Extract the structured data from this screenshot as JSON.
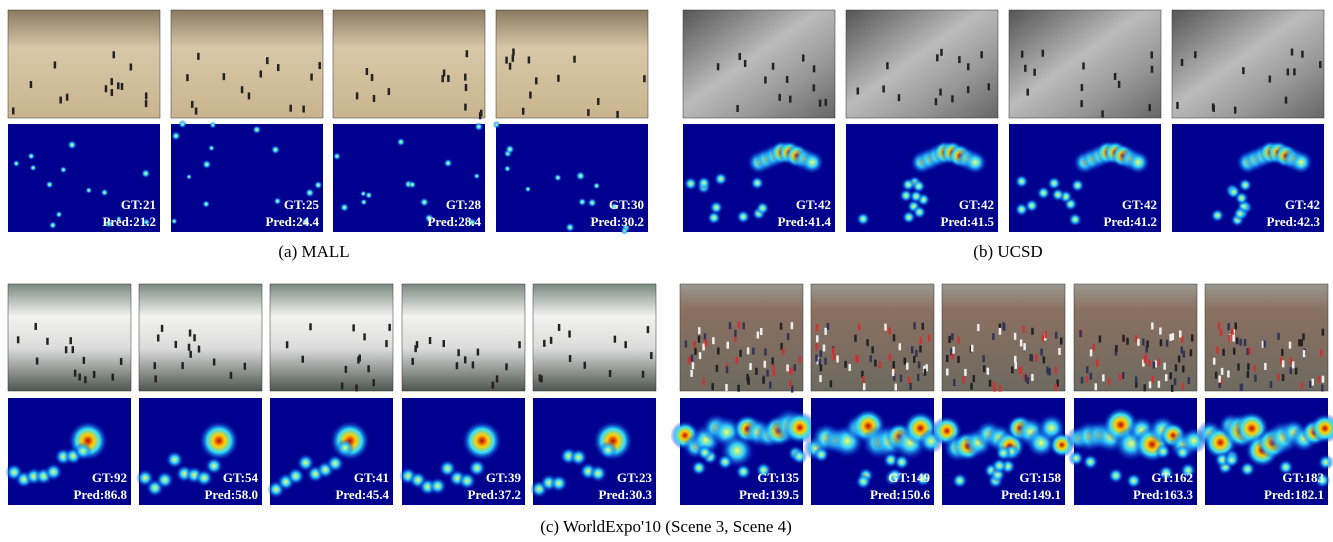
{
  "figure": {
    "panels": [
      {
        "caption": "(a) MALL",
        "frames": [
          {
            "gt": "GT:21",
            "pred": "Pred:21.2"
          },
          {
            "gt": "GT:25",
            "pred": "Pred:24.4"
          },
          {
            "gt": "GT:28",
            "pred": "Pred:28.4"
          },
          {
            "gt": "GT:30",
            "pred": "Pred:30.2"
          }
        ]
      },
      {
        "caption": "(b) UCSD",
        "frames": [
          {
            "gt": "GT:42",
            "pred": "Pred:41.4"
          },
          {
            "gt": "GT:42",
            "pred": "Pred:41.5"
          },
          {
            "gt": "GT:42",
            "pred": "Pred:41.2"
          },
          {
            "gt": "GT:42",
            "pred": "Pred:42.3"
          }
        ]
      },
      {
        "frames": [
          {
            "gt": "GT:92",
            "pred": "Pred:86.8"
          },
          {
            "gt": "GT:54",
            "pred": "Pred:58.0"
          },
          {
            "gt": "GT:41",
            "pred": "Pred:45.4"
          },
          {
            "gt": "GT:39",
            "pred": "Pred:37.2"
          },
          {
            "gt": "GT:23",
            "pred": "Pred:30.3"
          }
        ]
      },
      {
        "frames": [
          {
            "gt": "GT:135",
            "pred": "Pred:139.5"
          },
          {
            "gt": "GT:149",
            "pred": "Pred:150.6"
          },
          {
            "gt": "GT:158",
            "pred": "Pred:149.1"
          },
          {
            "gt": "GT:162",
            "pred": "Pred:163.3"
          },
          {
            "gt": "GT:183",
            "pred": "Pred:182.1"
          }
        ]
      }
    ],
    "caption": "(c) WorldExpo'10 (Scene 3, Scene 4)"
  }
}
